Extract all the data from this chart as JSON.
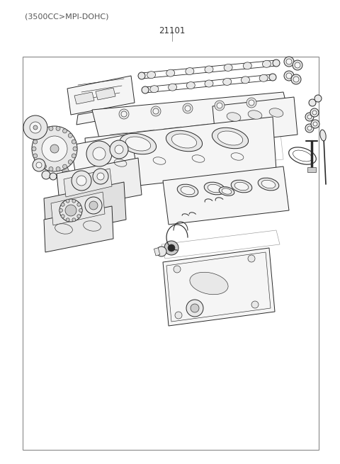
{
  "subtitle": "(3500CC>MPI-DOHC)",
  "part_number": "21101",
  "bg_color": "#ffffff",
  "line_color": "#2a2a2a",
  "fill_light": "#f5f5f5",
  "fill_mid": "#e8e8e8",
  "fill_dark": "#cccccc",
  "subtitle_fontsize": 8.0,
  "part_num_fontsize": 8.5,
  "fig_width": 4.8,
  "fig_height": 6.55,
  "dpi": 100,
  "lw_main": 0.7,
  "lw_detail": 0.45
}
